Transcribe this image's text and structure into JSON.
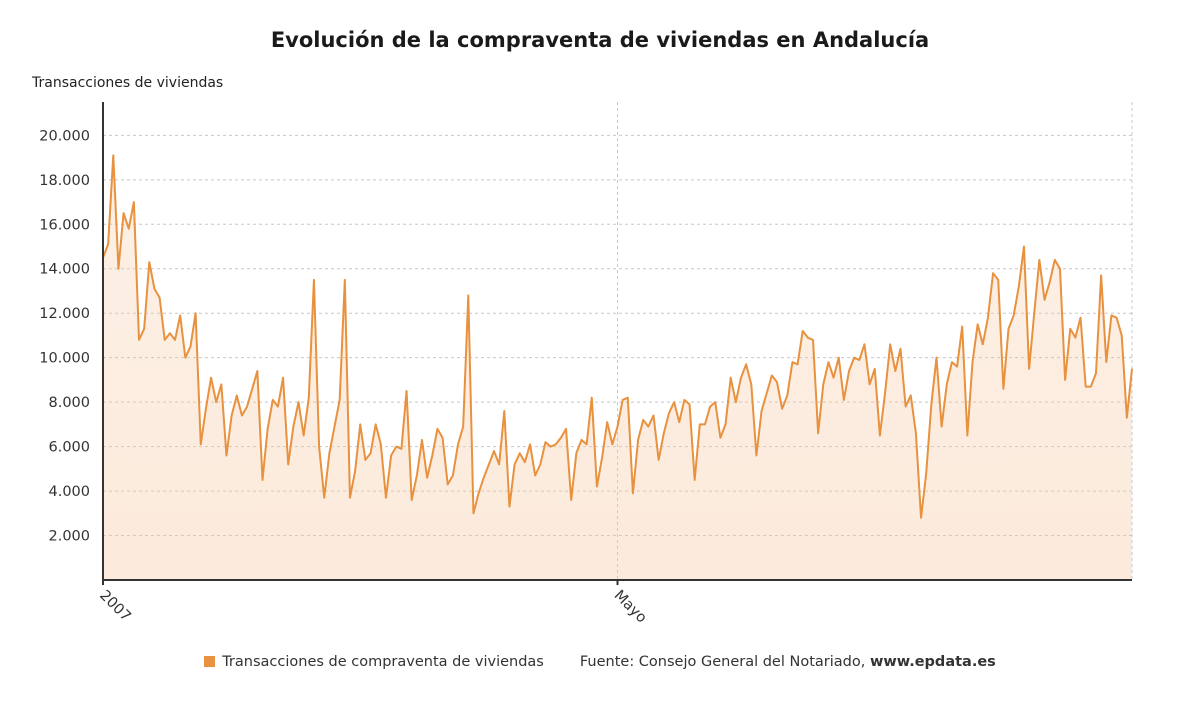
{
  "header": {
    "title": "Evolución de la compraventa de viviendas en Andalucía"
  },
  "legend": {
    "series_label": "Transacciones de compraventa de viviendas",
    "source_prefix": "Fuente: Consejo General del Notariado,",
    "source_site": "www.epdata.es"
  },
  "colors": {
    "line": "#e8913e",
    "fill_top": "#f6c9a3",
    "grid": "#c8c8c8",
    "axis": "#333333"
  },
  "chart_data": {
    "type": "line",
    "title": "Evolución de la compraventa de viviendas en Andalucía",
    "ylabel": "Transacciones de viviendas",
    "xlabel": "",
    "ylim": [
      0,
      21500
    ],
    "y_ticks": [
      2000,
      4000,
      6000,
      8000,
      10000,
      12000,
      14000,
      16000,
      18000,
      20000
    ],
    "y_tick_labels": [
      "2.000",
      "4.000",
      "6.000",
      "8.000",
      "10.000",
      "12.000",
      "14.000",
      "16.000",
      "18.000",
      "20.000"
    ],
    "x_tick_labels": [
      {
        "label": "2007",
        "index": 0
      },
      {
        "label": "Mayo",
        "index": 100
      }
    ],
    "grid": true,
    "legend_position": "bottom",
    "series": [
      {
        "name": "Transacciones de compraventa de viviendas",
        "values": [
          14500,
          15100,
          19100,
          14000,
          16500,
          15800,
          17000,
          10800,
          11300,
          14300,
          13100,
          12700,
          10800,
          11100,
          10800,
          11900,
          10000,
          10500,
          12000,
          6100,
          7700,
          9100,
          8000,
          8800,
          5600,
          7400,
          8300,
          7400,
          7800,
          8600,
          9400,
          4500,
          6800,
          8100,
          7800,
          9100,
          5200,
          6900,
          8000,
          6500,
          8200,
          13500,
          6000,
          3700,
          5700,
          6900,
          8100,
          13500,
          3700,
          4900,
          7000,
          5400,
          5700,
          7000,
          6100,
          3700,
          5600,
          6000,
          5900,
          8500,
          3600,
          4700,
          6300,
          4600,
          5600,
          6800,
          6400,
          4300,
          4700,
          6100,
          6900,
          12800,
          3000,
          3900,
          4600,
          5200,
          5800,
          5200,
          7600,
          3300,
          5200,
          5700,
          5300,
          6100,
          4700,
          5200,
          6200,
          6000,
          6100,
          6400,
          6800,
          3600,
          5700,
          6300,
          6100,
          8200,
          4200,
          5500,
          7100,
          6100,
          6900,
          8100,
          8200,
          3900,
          6300,
          7200,
          6900,
          7400,
          5400,
          6600,
          7500,
          8000,
          7100,
          8100,
          7900,
          4500,
          7000,
          7000,
          7800,
          8000,
          6400,
          7000,
          9100,
          8000,
          9100,
          9700,
          8800,
          5600,
          7600,
          8400,
          9200,
          8900,
          7700,
          8300,
          9800,
          9700,
          11200,
          10900,
          10800,
          6600,
          8800,
          9800,
          9100,
          10000,
          8100,
          9400,
          10000,
          9900,
          10600,
          8800,
          9500,
          6500,
          8400,
          10600,
          9400,
          10400,
          7800,
          8300,
          6600,
          2800,
          4800,
          7900,
          10000,
          6900,
          8800,
          9800,
          9600,
          11400,
          6500,
          9800,
          11500,
          10600,
          11800,
          13800,
          13500,
          8600,
          11300,
          11900,
          13200,
          15000,
          9500,
          12000,
          14400,
          12600,
          13400,
          14400,
          14000,
          9000,
          11300,
          10900,
          11800,
          8700,
          8700,
          9300,
          13700,
          9800,
          11900,
          11800,
          11000,
          7300,
          9500
        ]
      }
    ]
  }
}
